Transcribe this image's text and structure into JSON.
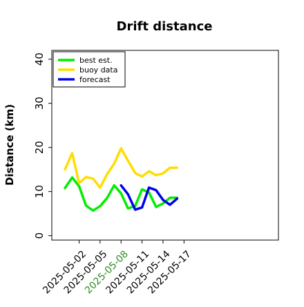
{
  "chart_data": {
    "type": "line",
    "title": "Drift distance",
    "xlabel": "",
    "ylabel": "Distance (km)",
    "ylim": [
      -1,
      42
    ],
    "yticks": [
      0,
      10,
      20,
      30,
      40
    ],
    "xlim": [
      -0.3,
      10.5
    ],
    "xticks": [
      {
        "pos": 1,
        "label": "2025-05-02",
        "color": "#000000"
      },
      {
        "pos": 2,
        "label": "2025-05-05",
        "color": "#000000"
      },
      {
        "pos": 3,
        "label": "2025-05-08",
        "color": "#2e8b22"
      },
      {
        "pos": 4,
        "label": "2025-05-11",
        "color": "#000000"
      },
      {
        "pos": 5,
        "label": "2025-05-14",
        "color": "#000000"
      },
      {
        "pos": 6,
        "label": "2025-05-17",
        "color": "#000000"
      }
    ],
    "legend_position": "top-left",
    "grid": false,
    "series": [
      {
        "name": "best est.",
        "color": "#00ee00",
        "x": [
          0.33,
          0.67,
          1.0,
          1.33,
          1.67,
          2.0,
          2.33,
          2.67,
          3.0,
          3.33,
          3.67,
          4.0,
          4.33,
          4.67,
          5.0,
          5.33,
          5.67
        ],
        "y": [
          10.8,
          13.2,
          11.2,
          6.8,
          5.7,
          6.7,
          8.5,
          11.4,
          9.6,
          6.2,
          6.7,
          10.5,
          9.8,
          6.5,
          7.3,
          8.6,
          8.6
        ],
        "values_note": ""
      },
      {
        "name": "buoy data",
        "color": "#ffdd00",
        "x": [
          0.33,
          0.67,
          1.0,
          1.33,
          1.67,
          2.0,
          2.33,
          2.67,
          3.0,
          3.33,
          3.67,
          4.0,
          4.33,
          4.67,
          5.0,
          5.33,
          5.67
        ],
        "y": [
          15.0,
          18.7,
          11.9,
          13.3,
          12.9,
          10.9,
          13.9,
          16.3,
          19.8,
          17.0,
          14.2,
          13.4,
          14.6,
          13.7,
          14.1,
          15.4,
          15.4
        ]
      },
      {
        "name": "forecast",
        "color": "#0000ee",
        "x": [
          3.0,
          3.33,
          3.67,
          4.0,
          4.33,
          4.67,
          5.0,
          5.33,
          5.67
        ],
        "y": [
          11.4,
          9.4,
          5.9,
          6.4,
          10.9,
          10.3,
          8.1,
          7.0,
          8.4
        ]
      }
    ]
  }
}
